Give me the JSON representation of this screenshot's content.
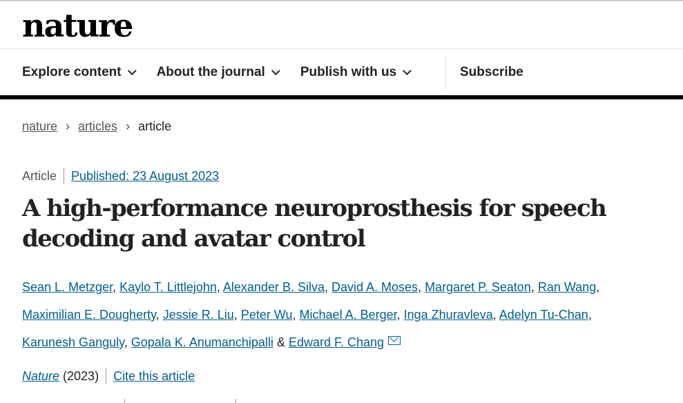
{
  "logo": "nature",
  "nav": {
    "items": [
      "Explore content",
      "About the journal",
      "Publish with us"
    ],
    "subscribe": "Subscribe"
  },
  "breadcrumb": [
    "nature",
    "articles",
    "article"
  ],
  "meta": {
    "type": "Article",
    "published": "Published: 23 August 2023"
  },
  "title": "A high-performance neuroprosthesis for speech decoding and avatar control",
  "authors": [
    "Sean L. Metzger",
    "Kaylo T. Littlejohn",
    "Alexander B. Silva",
    "David A. Moses",
    "Margaret P. Seaton",
    "Ran Wang",
    "Maximilian E. Dougherty",
    "Jessie R. Liu",
    "Peter Wu",
    "Michael A. Berger",
    "Inga Zhuravleva",
    "Adelyn Tu-Chan",
    "Karunesh Ganguly",
    "Gopala K. Anumanchipalli",
    "Edward F. Chang"
  ],
  "cite": {
    "journal": "Nature",
    "year": "(2023)",
    "cite_label": "Cite this article"
  },
  "colors": {
    "link": "#025e8d"
  }
}
